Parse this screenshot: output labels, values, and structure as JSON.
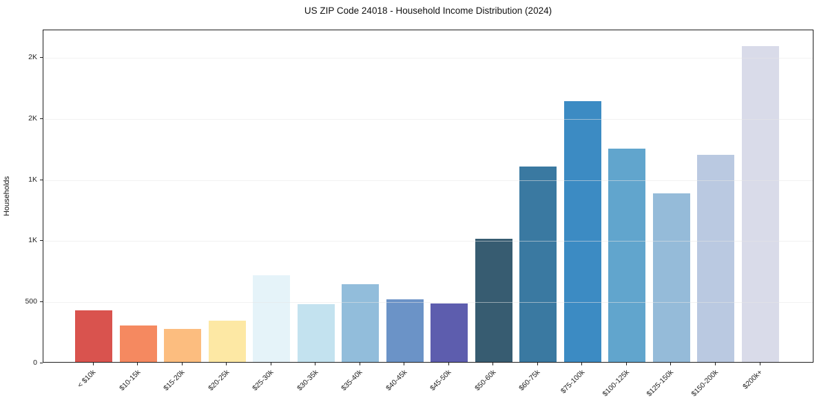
{
  "title": "US ZIP Code 24018 - Household Income Distribution (2024)",
  "chart_data": {
    "type": "bar",
    "title": "US ZIP Code 24018 - Household Income Distribution (2024)",
    "xlabel": "",
    "ylabel": "Households",
    "categories": [
      "< $10k",
      "$10-15k",
      "$15-20k",
      "$20-25k",
      "$25-30k",
      "$30-35k",
      "$35-40k",
      "$40-45k",
      "$45-50k",
      "$50-60k",
      "$60-75k",
      "$75-100k",
      "$100-125k",
      "$125-150k",
      "$150-200k",
      "$200k+"
    ],
    "values": [
      425,
      300,
      270,
      340,
      710,
      475,
      640,
      515,
      480,
      1010,
      1600,
      2140,
      1750,
      1380,
      1700,
      2590
    ],
    "bar_colors": [
      "#d9534e",
      "#f58960",
      "#fcbd7f",
      "#fde8a4",
      "#e5f3f9",
      "#c3e2ef",
      "#92bddb",
      "#6b93c7",
      "#5d5dae",
      "#375c71",
      "#3a79a1",
      "#3c8bc3",
      "#61a5cd",
      "#95bbd9",
      "#bac9e1",
      "#d9dbe9"
    ],
    "ylim": [
      0,
      2730
    ],
    "yticks": [
      {
        "value": 0,
        "label": "0"
      },
      {
        "value": 500,
        "label": "500"
      },
      {
        "value": 1000,
        "label": "1K"
      },
      {
        "value": 1500,
        "label": "1K"
      },
      {
        "value": 2000,
        "label": "2K"
      },
      {
        "value": 2500,
        "label": "2K"
      }
    ],
    "grid": "horizontal",
    "legend": "none",
    "background": "#ffffff",
    "grid_color": "#e8e8e8",
    "spine_color": "#1a1a1a",
    "text_color": "#111111"
  }
}
